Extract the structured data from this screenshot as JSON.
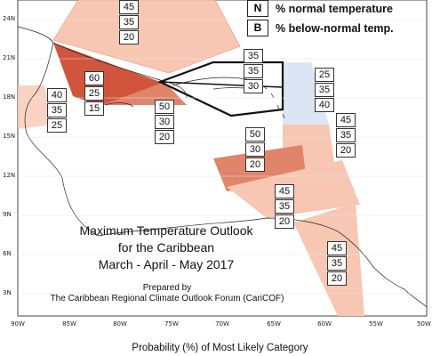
{
  "map": {
    "lat_labels": [
      "24N",
      "21N",
      "18N",
      "15N",
      "12N",
      "9N",
      "6N",
      "3N"
    ],
    "lon_labels": [
      "90W",
      "85W",
      "80W",
      "75W",
      "70W",
      "65W",
      "60W",
      "55W",
      "50W"
    ]
  },
  "legend": {
    "rows": [
      {
        "key": "N",
        "text": "% normal temperature"
      },
      {
        "key": "B",
        "text": "% below-normal temp."
      }
    ]
  },
  "title": {
    "line1": "Maximum Temperature Outlook",
    "line2": "for the Caribbean",
    "line3": "March - April - May 2017"
  },
  "prepared": {
    "line1": "Prepared by",
    "line2": "The Caribbean Regional Climate Outlook Forum (CariCOF)"
  },
  "footer": "Probability (%) of Most Likely Category",
  "probabilities": [
    {
      "region": "bahamas",
      "values": [
        "45",
        "35",
        "20"
      ]
    },
    {
      "region": "greater-antilles-east",
      "values": [
        "35",
        "35",
        "30"
      ]
    },
    {
      "region": "belize",
      "values": [
        "40",
        "35",
        "25"
      ]
    },
    {
      "region": "cuba-cayman",
      "values": [
        "60",
        "25",
        "15"
      ]
    },
    {
      "region": "jamaica",
      "values": [
        "50",
        "30",
        "20"
      ]
    },
    {
      "region": "leeward-islands",
      "values": [
        "25",
        "35",
        "40"
      ]
    },
    {
      "region": "windward-islands",
      "values": [
        "45",
        "35",
        "20"
      ]
    },
    {
      "region": "caribbean-coast",
      "values": [
        "50",
        "30",
        "20"
      ]
    },
    {
      "region": "trinidad",
      "values": [
        "45",
        "35",
        "20"
      ]
    },
    {
      "region": "guianas",
      "values": [
        "45",
        "35",
        "20"
      ]
    }
  ],
  "colors": {
    "light_orange": "#f7c7b3",
    "medium_orange": "#e0846a",
    "dark_orange": "#d1553d",
    "light_blue": "#dbe5f3"
  }
}
